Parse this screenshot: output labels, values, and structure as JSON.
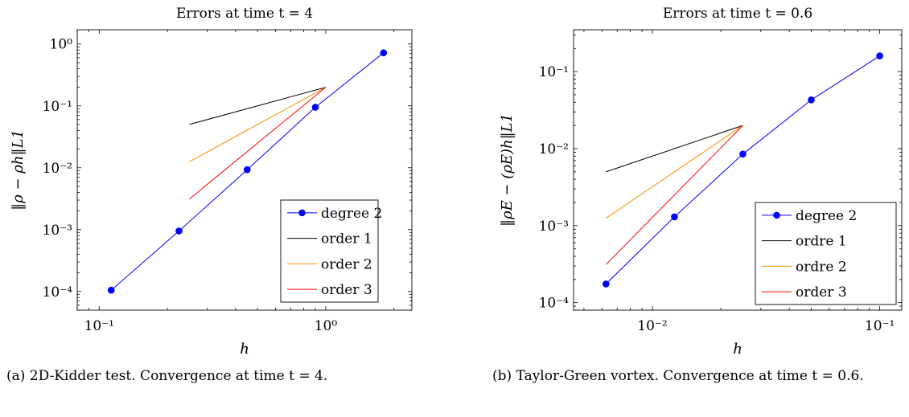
{
  "chart_data": [
    {
      "type": "line",
      "title": "Errors at time t = 4",
      "xlabel": "h",
      "ylabel": "‖ρ − ρh‖L1",
      "xscale": "log",
      "yscale": "log",
      "xlim": [
        0.08,
        2.4
      ],
      "ylim": [
        5e-05,
        1.7
      ],
      "xticks": [
        {
          "value": 0.1,
          "label": "10⁻¹"
        },
        {
          "value": 1,
          "label": "10⁰"
        }
      ],
      "yticks": [
        {
          "value": 0.0001,
          "label": "10⁻⁴"
        },
        {
          "value": 0.001,
          "label": "10⁻³"
        },
        {
          "value": 0.01,
          "label": "10⁻²"
        },
        {
          "value": 0.1,
          "label": "10⁻¹"
        },
        {
          "value": 1,
          "label": "10⁰"
        }
      ],
      "grid": false,
      "legend_position": "bottom-right",
      "series": [
        {
          "name": "degree 2",
          "color": "#0000ff",
          "marker": "circle",
          "x": [
            0.113,
            0.225,
            0.45,
            0.9,
            1.8
          ],
          "y": [
            0.000105,
            0.00095,
            0.0093,
            0.095,
            0.72
          ]
        },
        {
          "name": "order 1",
          "color": "#000000",
          "marker": "none",
          "x": [
            0.25,
            1.0
          ],
          "y": [
            0.05,
            0.2
          ]
        },
        {
          "name": "order 2",
          "color": "#ff8c00",
          "marker": "none",
          "x": [
            0.25,
            1.0
          ],
          "y": [
            0.0125,
            0.2
          ]
        },
        {
          "name": "order 3",
          "color": "#ff0000",
          "marker": "none",
          "x": [
            0.25,
            1.0
          ],
          "y": [
            0.003125,
            0.2
          ]
        }
      ]
    },
    {
      "type": "line",
      "title": "Errors at time t = 0.6",
      "xlabel": "h",
      "ylabel": "‖ρE − (ρE)h‖L1",
      "xscale": "log",
      "yscale": "log",
      "xlim": [
        0.0045,
        0.125
      ],
      "ylim": [
        8e-05,
        0.35
      ],
      "xticks": [
        {
          "value": 0.01,
          "label": "10⁻²"
        },
        {
          "value": 0.1,
          "label": "10⁻¹"
        }
      ],
      "yticks": [
        {
          "value": 0.0001,
          "label": "10⁻⁴"
        },
        {
          "value": 0.001,
          "label": "10⁻³"
        },
        {
          "value": 0.01,
          "label": "10⁻²"
        },
        {
          "value": 0.1,
          "label": "10⁻¹"
        }
      ],
      "grid": false,
      "legend_position": "bottom-right",
      "series": [
        {
          "name": "degree 2",
          "color": "#0000ff",
          "marker": "circle",
          "x": [
            0.00625,
            0.0125,
            0.025,
            0.05,
            0.1
          ],
          "y": [
            0.000175,
            0.0013,
            0.0085,
            0.043,
            0.16
          ]
        },
        {
          "name": "ordre 1",
          "color": "#000000",
          "marker": "none",
          "x": [
            0.00625,
            0.025
          ],
          "y": [
            0.005,
            0.02
          ]
        },
        {
          "name": "ordre 2",
          "color": "#ff8c00",
          "marker": "none",
          "x": [
            0.00625,
            0.025
          ],
          "y": [
            0.00125,
            0.02
          ]
        },
        {
          "name": "order 3",
          "color": "#ff0000",
          "marker": "none",
          "x": [
            0.00625,
            0.025
          ],
          "y": [
            0.0003125,
            0.02
          ]
        }
      ]
    }
  ],
  "captions": {
    "a": "(a) 2D-Kidder test. Convergence at time t = 4.",
    "b": "(b) Taylor-Green vortex. Convergence at time t = 0.6."
  }
}
